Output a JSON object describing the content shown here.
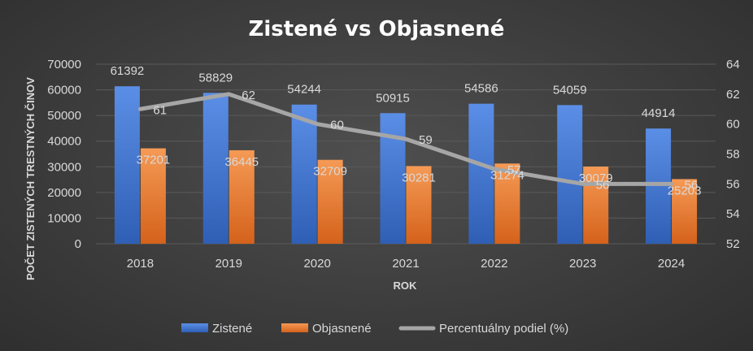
{
  "chart_data": {
    "type": "bar",
    "title": "Zistené vs Objasnené",
    "xlabel": "ROK",
    "ylabel": "POČET ZISTENÝCH TRESTNÝCH ČINOV",
    "categories": [
      "2018",
      "2019",
      "2020",
      "2021",
      "2022",
      "2023",
      "2024"
    ],
    "series": [
      {
        "name": "Zistené",
        "type": "bar",
        "axis": "left",
        "color": "#4472c4",
        "values": [
          61392,
          58829,
          54244,
          50915,
          54586,
          54059,
          44914
        ]
      },
      {
        "name": "Objasnené",
        "type": "bar",
        "axis": "left",
        "color": "#ed7d31",
        "values": [
          37201,
          36445,
          32709,
          30281,
          31274,
          30079,
          25203
        ]
      },
      {
        "name": "Percentuálny podiel (%)",
        "type": "line",
        "axis": "right",
        "color": "#a6a6a6",
        "values": [
          61,
          62,
          60,
          59,
          57,
          56,
          56
        ]
      }
    ],
    "ylim": [
      0,
      70000
    ],
    "yticks": [
      "0",
      "10000",
      "20000",
      "30000",
      "40000",
      "50000",
      "60000",
      "70000"
    ],
    "y2lim": [
      52,
      64
    ],
    "y2ticks": [
      "52",
      "54",
      "56",
      "58",
      "60",
      "62",
      "64"
    ],
    "grid": true,
    "legend": "bottom"
  }
}
